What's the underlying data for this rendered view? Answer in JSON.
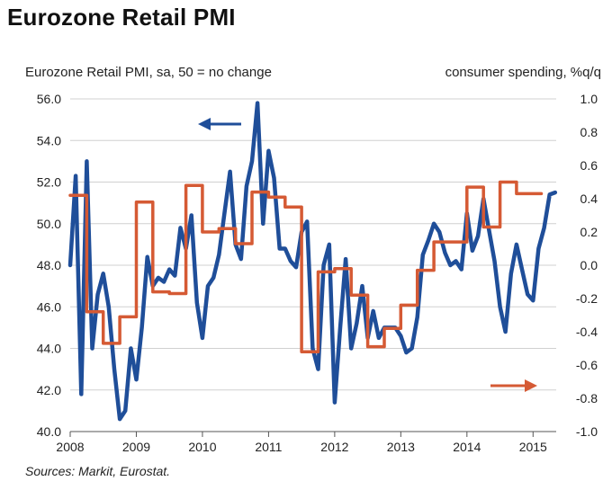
{
  "title": "Eurozone Retail PMI",
  "source": "Sources: Markit, Eurostat.",
  "chart_data": {
    "type": "line",
    "title": "Eurozone Retail PMI",
    "xlabel": "",
    "ylabel": "Eurozone Retail PMI, sa, 50 = no change",
    "y2label": "consumer spending, %q/q",
    "xlim": [
      2008.0,
      2015.35
    ],
    "ylim": [
      40.0,
      56.0
    ],
    "y2lim": [
      -1.0,
      1.0
    ],
    "grid": true,
    "x_ticks": [
      "2008",
      "2009",
      "2010",
      "2011",
      "2012",
      "2013",
      "2014",
      "2015"
    ],
    "y_ticks": [
      "40.0",
      "42.0",
      "44.0",
      "46.0",
      "48.0",
      "50.0",
      "52.0",
      "54.0",
      "56.0"
    ],
    "y2_ticks": [
      "-1.0",
      "-0.8",
      "-0.6",
      "-0.4",
      "-0.2",
      "0.0",
      "0.2",
      "0.4",
      "0.6",
      "0.8",
      "1.0"
    ],
    "series": [
      {
        "name": "Eurozone Retail PMI",
        "axis": "left",
        "color": "#1f4e99",
        "x": [
          2008.0,
          2008.083,
          2008.167,
          2008.25,
          2008.333,
          2008.417,
          2008.5,
          2008.583,
          2008.667,
          2008.75,
          2008.833,
          2008.917,
          2009.0,
          2009.083,
          2009.167,
          2009.25,
          2009.333,
          2009.417,
          2009.5,
          2009.583,
          2009.667,
          2009.75,
          2009.833,
          2009.917,
          2010.0,
          2010.083,
          2010.167,
          2010.25,
          2010.333,
          2010.417,
          2010.5,
          2010.583,
          2010.667,
          2010.75,
          2010.833,
          2010.917,
          2011.0,
          2011.083,
          2011.167,
          2011.25,
          2011.333,
          2011.417,
          2011.5,
          2011.583,
          2011.667,
          2011.75,
          2011.833,
          2011.917,
          2012.0,
          2012.083,
          2012.167,
          2012.25,
          2012.333,
          2012.417,
          2012.5,
          2012.583,
          2012.667,
          2012.75,
          2012.833,
          2012.917,
          2013.0,
          2013.083,
          2013.167,
          2013.25,
          2013.333,
          2013.417,
          2013.5,
          2013.583,
          2013.667,
          2013.75,
          2013.833,
          2013.917,
          2014.0,
          2014.083,
          2014.167,
          2014.25,
          2014.333,
          2014.417,
          2014.5,
          2014.583,
          2014.667,
          2014.75,
          2014.833,
          2014.917,
          2015.0,
          2015.083,
          2015.167,
          2015.25,
          2015.333
        ],
        "values": [
          48.0,
          52.3,
          41.8,
          53.0,
          44.0,
          46.6,
          47.6,
          46.0,
          43.0,
          40.6,
          41.0,
          44.0,
          42.5,
          45.0,
          48.4,
          47.0,
          47.4,
          47.2,
          47.8,
          47.5,
          49.8,
          48.8,
          50.4,
          46.2,
          44.5,
          47.0,
          47.4,
          48.5,
          50.5,
          52.5,
          49.0,
          48.3,
          51.8,
          53.0,
          55.8,
          50.0,
          53.5,
          52.2,
          48.8,
          48.8,
          48.2,
          47.9,
          49.6,
          50.1,
          44.0,
          43.0,
          48.0,
          49.0,
          41.4,
          45.0,
          48.3,
          44.0,
          45.2,
          47.0,
          44.5,
          45.8,
          44.5,
          45.0,
          45.0,
          45.0,
          44.6,
          43.8,
          44.0,
          45.5,
          48.5,
          49.2,
          50.0,
          49.6,
          48.6,
          48.0,
          48.2,
          47.8,
          50.5,
          48.7,
          49.4,
          51.2,
          49.7,
          48.2,
          46.0,
          44.8,
          47.6,
          49.0,
          47.8,
          46.6,
          46.3,
          48.8,
          49.8,
          51.4,
          51.5
        ]
      },
      {
        "name": "consumer spending",
        "axis": "right",
        "color": "#d55a34",
        "x": [
          2008.0,
          2008.125,
          2008.25,
          2008.5,
          2008.75,
          2009.0,
          2009.25,
          2009.5,
          2009.75,
          2010.0,
          2010.25,
          2010.5,
          2010.75,
          2011.0,
          2011.25,
          2011.5,
          2011.75,
          2012.0,
          2012.25,
          2012.5,
          2012.75,
          2013.0,
          2013.25,
          2013.5,
          2013.75,
          2014.0,
          2014.25,
          2014.5,
          2014.75,
          2015.0
        ],
        "values": [
          0.42,
          0.42,
          -0.28,
          -0.47,
          -0.31,
          0.38,
          -0.16,
          -0.17,
          0.48,
          0.2,
          0.22,
          0.13,
          0.44,
          0.41,
          0.35,
          -0.52,
          -0.04,
          -0.02,
          -0.18,
          -0.49,
          -0.38,
          -0.24,
          -0.03,
          0.14,
          0.14,
          0.47,
          0.23,
          0.5,
          0.43,
          0.43
        ]
      }
    ],
    "annotations": [
      "left-pointing arrow (blue) → left axis",
      "right-pointing arrow (red) → right axis"
    ]
  }
}
